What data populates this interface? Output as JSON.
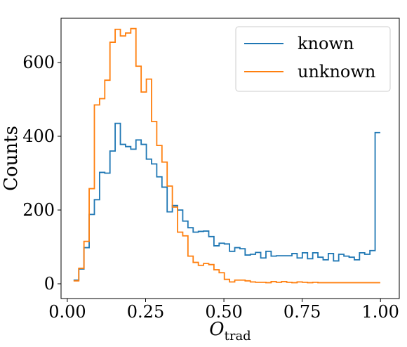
{
  "chart_data": {
    "type": "histogram",
    "xlabel": "O",
    "xlabel_subscript": "trad",
    "ylabel": "Counts",
    "xlim": [
      -0.02,
      1.06
    ],
    "ylim": [
      -40,
      720
    ],
    "xticks": [
      0.0,
      0.25,
      0.5,
      0.75,
      1.0
    ],
    "xtick_labels": [
      "0.00",
      "0.25",
      "0.50",
      "0.75",
      "1.00"
    ],
    "yticks": [
      0,
      200,
      400,
      600
    ],
    "ytick_labels": [
      "0",
      "200",
      "400",
      "600"
    ],
    "grid": false,
    "legend_position": "top-right",
    "bin_edges": [
      0.02,
      0.0366,
      0.0532,
      0.0698,
      0.0864,
      0.103,
      0.1196,
      0.1362,
      0.1528,
      0.1694,
      0.186,
      0.2026,
      0.2192,
      0.2358,
      0.2524,
      0.269,
      0.2856,
      0.3022,
      0.3188,
      0.3354,
      0.352,
      0.3686,
      0.3852,
      0.4018,
      0.4184,
      0.435,
      0.4516,
      0.4682,
      0.4848,
      0.5014,
      0.518,
      0.5346,
      0.5512,
      0.5678,
      0.5844,
      0.601,
      0.6176,
      0.6342,
      0.6508,
      0.6674,
      0.684,
      0.7006,
      0.7172,
      0.7338,
      0.7504,
      0.767,
      0.7836,
      0.8002,
      0.8168,
      0.8334,
      0.85,
      0.8666,
      0.8832,
      0.8998,
      0.9164,
      0.933,
      0.9496,
      0.9662,
      0.9828,
      0.9994
    ],
    "series": [
      {
        "name": "known",
        "color": "#1f77b4",
        "values": [
          10,
          40,
          98,
          188,
          228,
          302,
          300,
          360,
          435,
          378,
          372,
          365,
          390,
          378,
          338,
          325,
          290,
          262,
          195,
          212,
          200,
          170,
          152,
          140,
          142,
          143,
          128,
          103,
          110,
          108,
          88,
          98,
          95,
          78,
          80,
          85,
          70,
          88,
          75,
          76,
          76,
          76,
          82,
          70,
          84,
          68,
          84,
          72,
          65,
          82,
          62,
          80,
          75,
          72,
          65,
          84,
          80,
          90,
          410
        ]
      },
      {
        "name": "unknown",
        "color": "#ff7f0e",
        "values": [
          8,
          42,
          115,
          258,
          485,
          502,
          552,
          655,
          690,
          672,
          680,
          692,
          590,
          520,
          555,
          440,
          375,
          330,
          265,
          208,
          140,
          130,
          75,
          58,
          50,
          55,
          52,
          38,
          30,
          12,
          5,
          10,
          10,
          8,
          5,
          4,
          4,
          3,
          6,
          4,
          6,
          4,
          3,
          5,
          4,
          3,
          4,
          3,
          3,
          3,
          3,
          3,
          3,
          3,
          3,
          3,
          3,
          3,
          3
        ]
      }
    ]
  }
}
